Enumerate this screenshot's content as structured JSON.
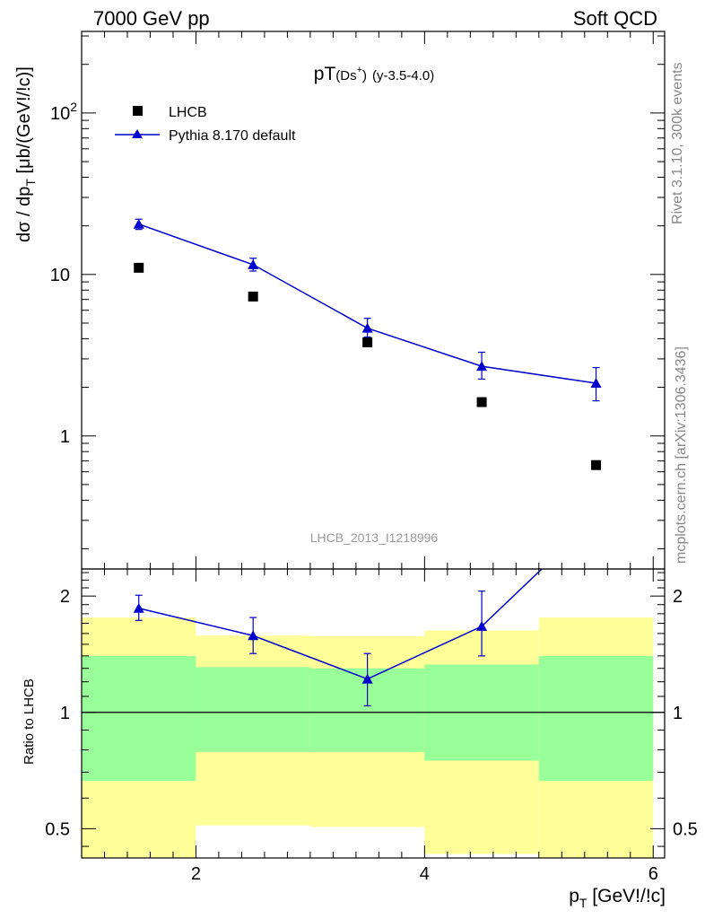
{
  "header": {
    "left": "7000 GeV pp",
    "right": "Soft QCD"
  },
  "side_text": {
    "rivet": "Rivet 3.1.10,  300k events",
    "source": "mcplots.cern.ch [arXiv:1306.3436]"
  },
  "plot": {
    "title_main": "pT",
    "title_sub": "(Ds",
    "title_sup": "+",
    "title_close": ")",
    "title_extra": "(y-3.5-4.0)",
    "watermark": "LHCB_2013_I1218996",
    "ylabel_main": "dσ / dp",
    "ylabel_sub": "T",
    "ylabel_tail": " [μb/(GeV!/!c)]",
    "ylabel_ratio": "Ratio to LHCB",
    "xlabel_main": "p",
    "xlabel_sub": "T",
    "xlabel_tail": " [GeV!/!c]"
  },
  "legend": {
    "data_label": "LHCB",
    "mc_label": "Pythia 8.170 default",
    "data_color": "#000000",
    "mc_color": "#0000cc"
  },
  "colors": {
    "band_outer": "#ffff99",
    "band_inner": "#99ff99"
  },
  "chart_data": [
    {
      "type": "scatter",
      "log_y": true,
      "xlim": [
        1.0,
        6.1
      ],
      "ylim": [
        0.15,
        320
      ],
      "yticks": [
        {
          "v": 1,
          "label": "1"
        },
        {
          "v": 10,
          "label": "10"
        },
        {
          "v": 100,
          "label": "10",
          "sup": "2"
        }
      ],
      "series": [
        {
          "name": "LHCB",
          "marker": "square",
          "x": [
            1.5,
            2.5,
            3.5,
            4.5,
            5.5
          ],
          "y": [
            11.0,
            7.3,
            3.8,
            1.62,
            0.66
          ]
        },
        {
          "name": "Pythia 8.170 default",
          "marker": "triangle",
          "x": [
            1.5,
            2.5,
            3.5,
            4.5,
            5.5
          ],
          "y": [
            20.5,
            11.5,
            4.65,
            2.7,
            2.12
          ],
          "yerr_lo": [
            19.0,
            10.5,
            4.1,
            2.25,
            1.65
          ],
          "yerr_hi": [
            22.0,
            12.6,
            5.35,
            3.3,
            2.65
          ]
        }
      ]
    },
    {
      "type": "line",
      "log_y": true,
      "xlim": [
        1.0,
        6.1
      ],
      "ylim": [
        0.42,
        2.35
      ],
      "yticks": [
        {
          "v": 0.5,
          "label": "0.5"
        },
        {
          "v": 1,
          "label": "1"
        },
        {
          "v": 2,
          "label": "2"
        }
      ],
      "xticks": [
        {
          "v": 2,
          "label": "2"
        },
        {
          "v": 4,
          "label": "4"
        },
        {
          "v": 6,
          "label": "6"
        }
      ],
      "bins": [
        {
          "lo": 1,
          "hi": 2,
          "outer": [
            0.42,
            1.76
          ],
          "inner": [
            0.665,
            1.4
          ]
        },
        {
          "lo": 2,
          "hi": 3,
          "outer": [
            0.51,
            1.58
          ],
          "inner": [
            0.79,
            1.31
          ]
        },
        {
          "lo": 3,
          "hi": 4,
          "outer": [
            0.505,
            1.575
          ],
          "inner": [
            0.79,
            1.3
          ]
        },
        {
          "lo": 4,
          "hi": 5,
          "outer": [
            0.43,
            1.63
          ],
          "inner": [
            0.75,
            1.33
          ]
        },
        {
          "lo": 5,
          "hi": 6,
          "outer": [
            0.42,
            1.76
          ],
          "inner": [
            0.665,
            1.4
          ]
        }
      ],
      "series": [
        {
          "name": "Pythia 8.170 default",
          "x": [
            1.5,
            2.5,
            3.5,
            4.5,
            5.5
          ],
          "y": [
            1.86,
            1.58,
            1.22,
            1.67,
            3.2
          ],
          "yerr_lo": [
            1.73,
            1.42,
            1.04,
            1.4,
            null
          ],
          "yerr_hi": [
            2.01,
            1.76,
            1.42,
            2.06,
            null
          ]
        }
      ]
    }
  ]
}
